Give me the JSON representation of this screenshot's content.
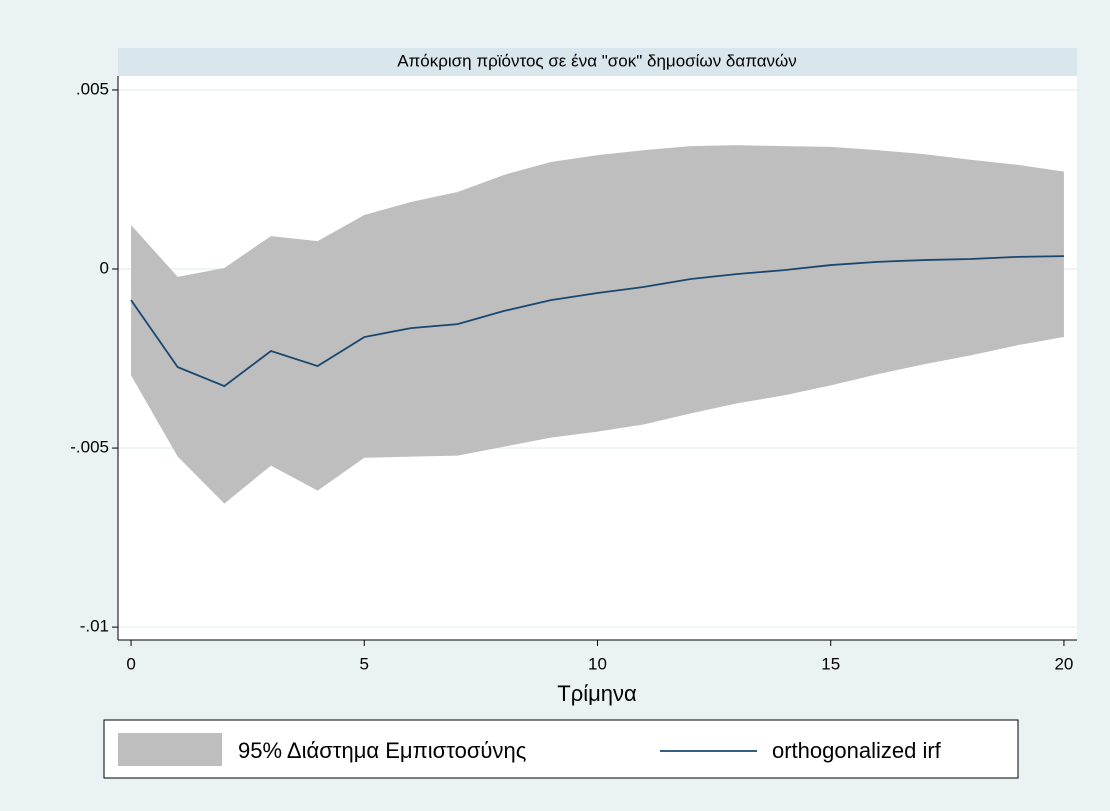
{
  "chart_data": {
    "type": "line",
    "title": "Απόκριση πρϊόντος σε ένα \"σοκ\" δημοσίων δαπανών",
    "x_label": "Τρίμηνα",
    "x": [
      0,
      1,
      2,
      3,
      4,
      5,
      6,
      7,
      8,
      9,
      10,
      11,
      12,
      13,
      14,
      15,
      16,
      17,
      18,
      19,
      20
    ],
    "series": [
      {
        "name": "95% Διάστημα Εμπιστοσύνης",
        "color": "#bebebe",
        "upper": [
          0.00123,
          -0.00022,
          3e-05,
          0.00092,
          0.00078,
          0.00151,
          0.00187,
          0.00215,
          0.00263,
          0.00299,
          0.00318,
          0.00332,
          0.00343,
          0.00346,
          0.00343,
          0.00341,
          0.00332,
          0.00321,
          0.00305,
          0.00291,
          0.00272
        ],
        "lower": [
          -0.00297,
          -0.00524,
          -0.00655,
          -0.00549,
          -0.00619,
          -0.00527,
          -0.00524,
          -0.00521,
          -0.00496,
          -0.00471,
          -0.00454,
          -0.00434,
          -0.00403,
          -0.00375,
          -0.00353,
          -0.00325,
          -0.00294,
          -0.00266,
          -0.00241,
          -0.00213,
          -0.0019
        ]
      },
      {
        "name": "orthogonalized irf",
        "color": "#1a476f",
        "values": [
          -0.00087,
          -0.00274,
          -0.00327,
          -0.00229,
          -0.00271,
          -0.0019,
          -0.00165,
          -0.00154,
          -0.00117,
          -0.00087,
          -0.00067,
          -0.0005,
          -0.00028,
          -0.00014,
          -3e-05,
          0.00011,
          0.0002,
          0.00025,
          0.00028,
          0.00034,
          0.00036
        ]
      }
    ],
    "xlim": [
      -0.28,
      20.28
    ],
    "ylim": [
      -0.01036,
      0.00539
    ],
    "xticks": [
      0,
      5,
      10,
      15,
      20
    ],
    "yticks": [
      {
        "value": -0.01,
        "label": "-.01"
      },
      {
        "value": -0.005,
        "label": "-.005"
      },
      0,
      {
        "value": 0.005,
        "label": ".005"
      }
    ],
    "grid": true,
    "legend": "bottom"
  }
}
